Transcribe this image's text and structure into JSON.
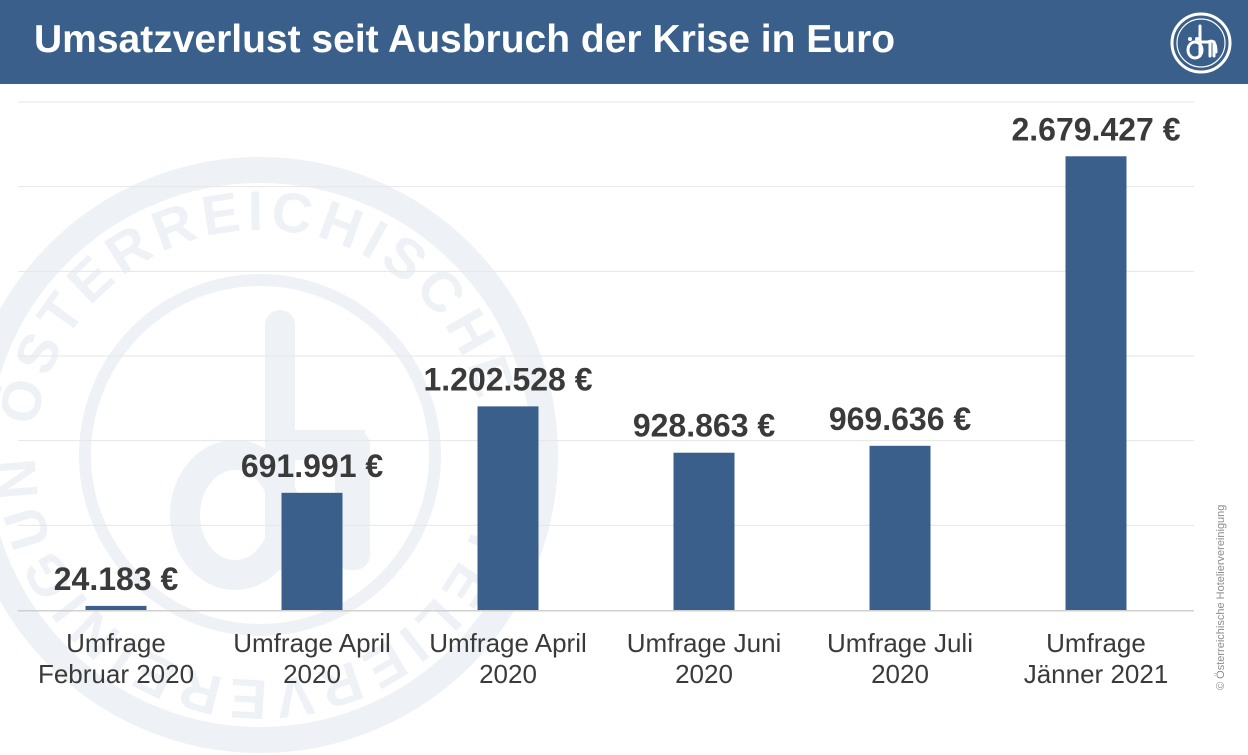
{
  "header": {
    "title": "Umsatzverlust seit Ausbruch der Krise in Euro",
    "logo_icon": "oehv-logo-icon",
    "background_color": "#3a5f8a"
  },
  "watermark": {
    "icon": "oehv-seal-watermark-icon",
    "text": "ÖSTERREICHISCHE HOTELIERVEREINIGUNG"
  },
  "footer": {
    "copyright": "© Österreichische Hoteliervereinigung"
  },
  "chart_data": {
    "type": "bar",
    "title": "Umsatzverlust seit Ausbruch der Krise in Euro",
    "categories": [
      "Umfrage Februar 2020",
      "Umfrage April 2020",
      "Umfrage April 2020",
      "Umfrage Juni 2020",
      "Umfrage Juli 2020",
      "Umfrage Jänner 2021"
    ],
    "category_lines": [
      [
        "Umfrage",
        "Februar 2020"
      ],
      [
        "Umfrage April",
        "2020"
      ],
      [
        "Umfrage April",
        "2020"
      ],
      [
        "Umfrage Juni",
        "2020"
      ],
      [
        "Umfrage Juli",
        "2020"
      ],
      [
        "Umfrage",
        "Jänner 2021"
      ]
    ],
    "values": [
      24183,
      691991,
      1202528,
      928863,
      969636,
      2679427
    ],
    "data_labels": [
      "24.183 €",
      "691.991 €",
      "1.202.528 €",
      "928.863 €",
      "969.636 €",
      "2.679.427 €"
    ],
    "xlabel": "",
    "ylabel": "",
    "ylim": [
      0,
      3000000
    ],
    "gridline_step": 500000,
    "grid": true,
    "axis_labels_shown": false,
    "bar_color": "#3a5f8a",
    "legend": "none"
  }
}
